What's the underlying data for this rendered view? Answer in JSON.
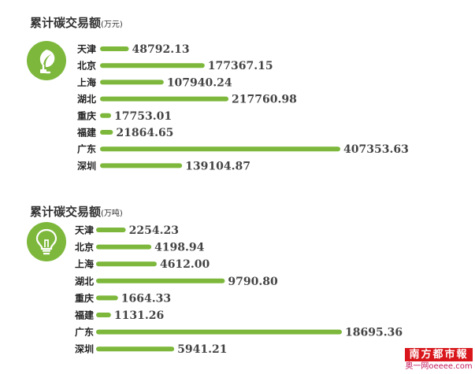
{
  "watermark": {
    "masthead": "南方都市報",
    "site": "奥一网oeeee.com"
  },
  "chart_data": [
    {
      "type": "bar",
      "orientation": "horizontal",
      "title": "累计碳交易额",
      "unit": "(万元)",
      "icon": "plug-leaf-icon",
      "categories": [
        "天津",
        "北京",
        "上海",
        "湖北",
        "重庆",
        "福建",
        "广东",
        "深圳"
      ],
      "values": [
        48792.13,
        177367.15,
        107940.24,
        217760.98,
        17753.01,
        21864.65,
        407353.63,
        139104.87
      ],
      "value_labels": [
        "48792.13",
        "177367.15",
        "107940.24",
        "217760.98",
        "17753.01",
        "21864.65",
        "407353.63",
        "139104.87"
      ],
      "color": "#7db83c",
      "grid": false
    },
    {
      "type": "bar",
      "orientation": "horizontal",
      "title": "累计碳交易额",
      "unit": "(万吨)",
      "icon": "lightbulb-icon",
      "categories": [
        "天津",
        "北京",
        "上海",
        "湖北",
        "重庆",
        "福建",
        "广东",
        "深圳"
      ],
      "values": [
        2254.23,
        4198.94,
        4612.0,
        9790.8,
        1664.33,
        1131.26,
        18695.36,
        5941.21
      ],
      "value_labels": [
        "2254.23",
        "4198.94",
        "4612.00",
        "9790.80",
        "1664.33",
        "1131.26",
        "18695.36",
        "5941.21"
      ],
      "color": "#7db83c",
      "grid": false
    }
  ]
}
